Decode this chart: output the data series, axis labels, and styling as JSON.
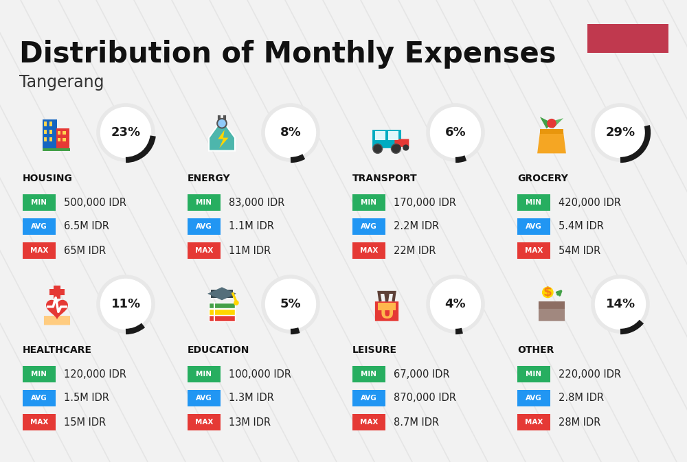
{
  "title": "Distribution of Monthly Expenses",
  "subtitle": "Tangerang",
  "bg_color": "#f2f2f2",
  "red_rect_color": "#c0394e",
  "categories": [
    {
      "name": "HOUSING",
      "pct": 23,
      "min": "500,000 IDR",
      "avg": "6.5M IDR",
      "max": "65M IDR",
      "col": 0,
      "row": 0
    },
    {
      "name": "ENERGY",
      "pct": 8,
      "min": "83,000 IDR",
      "avg": "1.1M IDR",
      "max": "11M IDR",
      "col": 1,
      "row": 0
    },
    {
      "name": "TRANSPORT",
      "pct": 6,
      "min": "170,000 IDR",
      "avg": "2.2M IDR",
      "max": "22M IDR",
      "col": 2,
      "row": 0
    },
    {
      "name": "GROCERY",
      "pct": 29,
      "min": "420,000 IDR",
      "avg": "5.4M IDR",
      "max": "54M IDR",
      "col": 3,
      "row": 0
    },
    {
      "name": "HEALTHCARE",
      "pct": 11,
      "min": "120,000 IDR",
      "avg": "1.5M IDR",
      "max": "15M IDR",
      "col": 0,
      "row": 1
    },
    {
      "name": "EDUCATION",
      "pct": 5,
      "min": "100,000 IDR",
      "avg": "1.3M IDR",
      "max": "13M IDR",
      "col": 1,
      "row": 1
    },
    {
      "name": "LEISURE",
      "pct": 4,
      "min": "67,000 IDR",
      "avg": "870,000 IDR",
      "max": "8.7M IDR",
      "col": 2,
      "row": 1
    },
    {
      "name": "OTHER",
      "pct": 14,
      "min": "220,000 IDR",
      "avg": "2.8M IDR",
      "max": "28M IDR",
      "col": 3,
      "row": 1
    }
  ],
  "min_color": "#27ae60",
  "avg_color": "#2196f3",
  "max_color": "#e53935",
  "circle_bg_color": "#e8e8e8",
  "circle_arc_color": "#1a1a1a",
  "pct_color": "#1a1a1a",
  "diag_line_color": "#e0e0e0",
  "title_color": "#111111",
  "subtitle_color": "#333333",
  "name_color": "#111111",
  "value_color": "#222222"
}
